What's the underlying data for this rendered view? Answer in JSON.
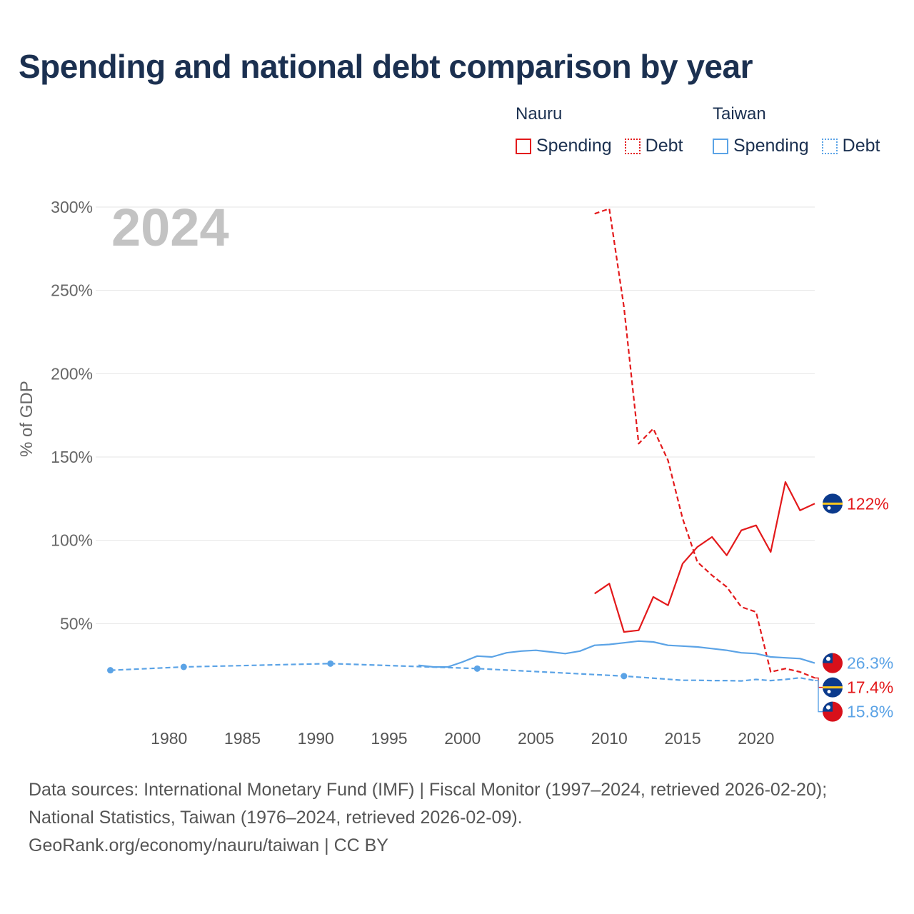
{
  "chart_data": {
    "type": "line",
    "title": "Spending and national debt comparison by year",
    "year_label": "2024",
    "ylabel": "% of GDP",
    "xlabel": "",
    "xlim": [
      1975,
      2024
    ],
    "ylim": [
      0,
      300
    ],
    "x_ticks": [
      1980,
      1985,
      1990,
      1995,
      2000,
      2005,
      2010,
      2015,
      2020
    ],
    "y_ticks": [
      {
        "value": 50,
        "label": "50%"
      },
      {
        "value": 100,
        "label": "100%"
      },
      {
        "value": 150,
        "label": "150%"
      },
      {
        "value": 200,
        "label": "200%"
      },
      {
        "value": 250,
        "label": "250%"
      },
      {
        "value": 300,
        "label": "300%"
      }
    ],
    "legend": {
      "groups": [
        {
          "name": "Nauru",
          "color": "#e31a1c",
          "items": [
            "Spending",
            "Debt"
          ]
        },
        {
          "name": "Taiwan",
          "color": "#5ba3e6",
          "items": [
            "Spending",
            "Debt"
          ]
        }
      ]
    },
    "series": [
      {
        "name": "Nauru Spending",
        "country": "Nauru",
        "color": "#e31a1c",
        "dash": "solid",
        "x": [
          2009,
          2010,
          2011,
          2012,
          2013,
          2014,
          2015,
          2016,
          2017,
          2018,
          2019,
          2020,
          2021,
          2022,
          2023,
          2024
        ],
        "values": [
          68,
          74,
          45,
          46,
          66,
          61,
          86,
          96,
          102,
          91,
          106,
          109,
          93,
          135,
          118,
          122
        ]
      },
      {
        "name": "Nauru Debt",
        "country": "Nauru",
        "color": "#e31a1c",
        "dash": "dashed",
        "x": [
          2009,
          2010,
          2011,
          2012,
          2013,
          2014,
          2015,
          2016,
          2017,
          2018,
          2019,
          2020,
          2021,
          2022,
          2023,
          2024
        ],
        "values": [
          296,
          299,
          240,
          158,
          167,
          148,
          113,
          87,
          79,
          72,
          60,
          57,
          21,
          23,
          21,
          17.4
        ]
      },
      {
        "name": "Taiwan Spending",
        "country": "Taiwan",
        "color": "#5ba3e6",
        "dash": "solid",
        "x": [
          1997,
          1998,
          1999,
          2000,
          2001,
          2002,
          2003,
          2004,
          2005,
          2006,
          2007,
          2008,
          2009,
          2010,
          2011,
          2012,
          2013,
          2014,
          2015,
          2016,
          2017,
          2018,
          2019,
          2020,
          2021,
          2022,
          2023,
          2024
        ],
        "values": [
          25,
          24,
          24,
          27,
          30.5,
          30,
          32.5,
          33.5,
          34,
          33,
          32,
          33.5,
          37,
          37.5,
          38.5,
          39.5,
          39,
          37,
          36.5,
          36,
          35,
          34,
          32.5,
          32,
          30,
          29.5,
          29,
          26.3
        ]
      },
      {
        "name": "Taiwan Debt",
        "country": "Taiwan",
        "color": "#5ba3e6",
        "dash": "dashed",
        "x": [
          1976,
          1981,
          1991,
          2001,
          2011,
          2015,
          2016,
          2017,
          2018,
          2019,
          2020,
          2021,
          2022,
          2023,
          2024
        ],
        "values": [
          22,
          24,
          26,
          23,
          18.5,
          16,
          16,
          15.8,
          15.8,
          15.6,
          16.5,
          15.8,
          16.5,
          17.5,
          15.8
        ],
        "points": [
          1976,
          1981,
          1991,
          2001,
          2011
        ]
      }
    ],
    "end_labels": [
      {
        "country": "Taiwan",
        "series": "Taiwan Spending",
        "value": 26.3,
        "label": "26.3%",
        "color": "#5ba3e6"
      },
      {
        "country": "Nauru",
        "series": "Nauru Spending",
        "value": 122,
        "label": "122%",
        "color": "#e31a1c"
      },
      {
        "country": "Nauru",
        "series": "Nauru Debt",
        "value": 17.4,
        "label": "17.4%",
        "color": "#e31a1c"
      },
      {
        "country": "Taiwan",
        "series": "Taiwan Debt",
        "value": 15.8,
        "label": "15.8%",
        "color": "#5ba3e6"
      }
    ]
  },
  "legend_labels": {
    "nauru": "Nauru",
    "taiwan": "Taiwan",
    "spending": "Spending",
    "debt": "Debt"
  },
  "footer": {
    "line1": "Data sources: International Monetary Fund (IMF) | Fiscal Monitor (1997–2024, retrieved 2026-02-20);",
    "line2": "National Statistics, Taiwan (1976–2024, retrieved 2026-02-09).",
    "line3": "GeoRank.org/economy/nauru/taiwan | CC BY"
  }
}
